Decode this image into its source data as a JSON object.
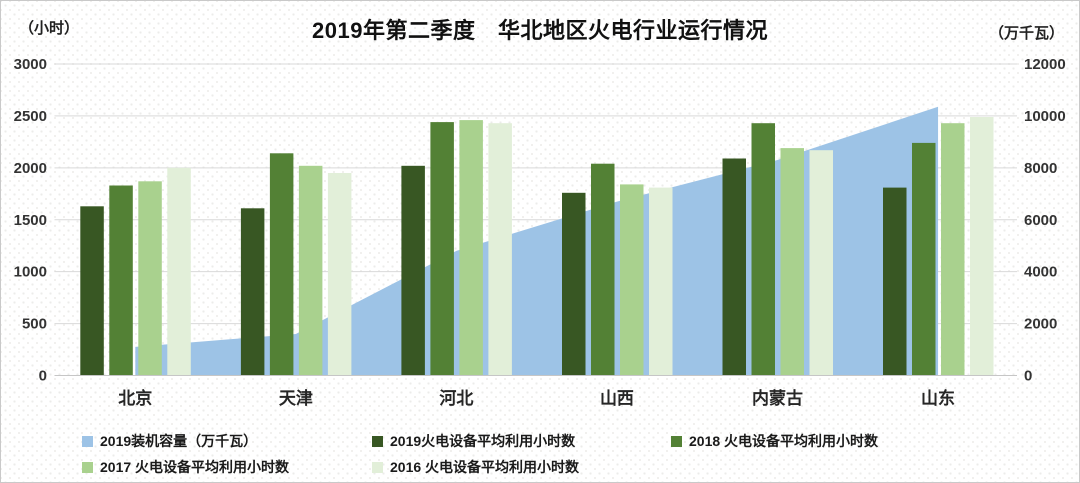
{
  "title": "2019年第二季度　华北地区火电行业运行情况",
  "left_axis": {
    "unit_label": "（小时）",
    "min": 0,
    "max": 3000,
    "step": 500
  },
  "right_axis": {
    "unit_label": "（万千瓦）",
    "min": 0,
    "max": 12000,
    "step": 2000
  },
  "colors": {
    "area_blue": "#9DC3E6",
    "green_2019": "#385723",
    "green_2018": "#538135",
    "green_2017": "#A9D18E",
    "green_2016": "#E2EFD9",
    "gridline": "#d9d9d9",
    "axis_line": "#c6c6c6",
    "tick_text": "#333333",
    "category_text": "#262626"
  },
  "chart_data": {
    "type": "combo (area on secondary axis + grouped bars)",
    "categories": [
      "北京",
      "天津",
      "河北",
      "山西",
      "内蒙古",
      "山东"
    ],
    "area_series": {
      "name": "2019装机容量（万千瓦）",
      "axis": "right",
      "color": "#9DC3E6",
      "values": [
        1100,
        1600,
        4800,
        6700,
        8300,
        10350
      ]
    },
    "series": [
      {
        "name": "2019火电设备平均利用小时数",
        "axis": "left",
        "color": "#385723",
        "values": [
          1630,
          1610,
          2020,
          1760,
          2090,
          1810
        ]
      },
      {
        "name": "2018 火电设备平均利用小时数",
        "axis": "left",
        "color": "#538135",
        "values": [
          1830,
          2140,
          2440,
          2040,
          2430,
          2240
        ]
      },
      {
        "name": "2017 火电设备平均利用小时数",
        "axis": "left",
        "color": "#A9D18E",
        "values": [
          1870,
          2020,
          2460,
          1840,
          2190,
          2430
        ]
      },
      {
        "name": "2016 火电设备平均利用小时数",
        "axis": "left",
        "color": "#E2EFD9",
        "values": [
          2000,
          1950,
          2430,
          1810,
          2170,
          2490
        ]
      }
    ],
    "title": "2019年第二季度　华北地区火电行业运行情况",
    "ylim_left": [
      0,
      3000
    ],
    "ylim_right": [
      0,
      12000
    ],
    "grid": true,
    "legend_position": "bottom"
  }
}
